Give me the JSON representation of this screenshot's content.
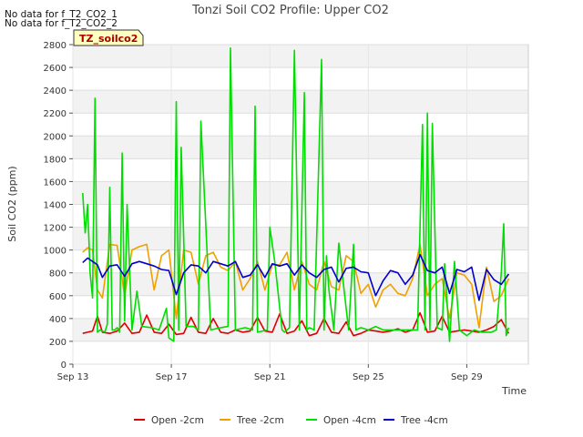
{
  "notes": [
    "No data for f_T2_CO2_1",
    "No data for f_T2_CO2_2"
  ],
  "badge": "TZ_soilco2",
  "chart_data": {
    "type": "line",
    "title": "Tonzi Soil CO2 Profile: Upper CO2",
    "xlabel": "Time",
    "ylabel": "Soil CO2 (ppm)",
    "ylim": [
      0,
      2800
    ],
    "yticks": [
      0,
      200,
      400,
      600,
      800,
      1000,
      1200,
      1400,
      1600,
      1800,
      2000,
      2200,
      2400,
      2600,
      2800
    ],
    "xlim": [
      13,
      31.5
    ],
    "xticks": [
      {
        "x": 13,
        "label": "Sep 13"
      },
      {
        "x": 17,
        "label": "Sep 17"
      },
      {
        "x": 21,
        "label": "Sep 21"
      },
      {
        "x": 25,
        "label": "Sep 25"
      },
      {
        "x": 29,
        "label": "Sep 29"
      }
    ],
    "grid": true,
    "legend_position": "bottom",
    "series": [
      {
        "name": "Open -2cm",
        "color": "#dd0000",
        "x": [
          13.4,
          13.6,
          13.8,
          14.0,
          14.2,
          14.5,
          14.8,
          15.1,
          15.4,
          15.7,
          16.0,
          16.3,
          16.6,
          16.9,
          17.2,
          17.5,
          17.8,
          18.1,
          18.4,
          18.7,
          19.0,
          19.3,
          19.6,
          19.9,
          20.2,
          20.5,
          20.8,
          21.1,
          21.4,
          21.7,
          22.0,
          22.3,
          22.6,
          22.9,
          23.2,
          23.5,
          23.8,
          24.1,
          24.4,
          24.7,
          25.0,
          25.3,
          25.6,
          25.9,
          26.2,
          26.5,
          26.8,
          27.1,
          27.4,
          27.7,
          28.0,
          28.3,
          28.6,
          28.9,
          29.2,
          29.5,
          29.8,
          30.1,
          30.4,
          30.7
        ],
        "values": [
          270,
          280,
          290,
          420,
          280,
          270,
          290,
          360,
          270,
          280,
          430,
          280,
          270,
          350,
          260,
          270,
          410,
          280,
          270,
          400,
          280,
          270,
          300,
          280,
          290,
          410,
          290,
          280,
          440,
          270,
          290,
          380,
          250,
          270,
          400,
          280,
          270,
          370,
          250,
          270,
          300,
          290,
          280,
          290,
          310,
          280,
          300,
          450,
          280,
          290,
          420,
          280,
          290,
          300,
          290,
          280,
          300,
          330,
          390,
          270
        ]
      },
      {
        "name": "Tree -2cm",
        "color": "#f0a000",
        "x": [
          13.4,
          13.6,
          13.8,
          14.0,
          14.2,
          14.5,
          14.8,
          15.1,
          15.4,
          15.7,
          16.0,
          16.3,
          16.6,
          16.9,
          17.2,
          17.5,
          17.8,
          18.1,
          18.4,
          18.7,
          19.0,
          19.3,
          19.6,
          19.9,
          20.2,
          20.5,
          20.8,
          21.1,
          21.4,
          21.7,
          22.0,
          22.3,
          22.6,
          22.9,
          23.2,
          23.5,
          23.8,
          24.1,
          24.4,
          24.7,
          25.0,
          25.3,
          25.6,
          25.9,
          26.2,
          26.5,
          26.8,
          27.1,
          27.4,
          27.7,
          28.0,
          28.3,
          28.6,
          28.9,
          29.2,
          29.5,
          29.8,
          30.1,
          30.4,
          30.7
        ],
        "values": [
          980,
          1020,
          1000,
          650,
          580,
          1050,
          1040,
          600,
          1000,
          1030,
          1050,
          650,
          950,
          1000,
          400,
          1000,
          980,
          700,
          950,
          980,
          850,
          820,
          900,
          650,
          750,
          900,
          650,
          870,
          870,
          980,
          650,
          900,
          700,
          650,
          900,
          680,
          650,
          950,
          900,
          620,
          700,
          500,
          650,
          700,
          620,
          600,
          750,
          1050,
          600,
          700,
          750,
          400,
          800,
          780,
          700,
          320,
          850,
          550,
          600,
          750
        ]
      },
      {
        "name": "Open -4cm",
        "color": "#00dd00",
        "x": [
          13.4,
          13.5,
          13.6,
          13.7,
          13.8,
          13.9,
          14.0,
          14.1,
          14.3,
          14.4,
          14.5,
          14.6,
          14.7,
          14.8,
          14.9,
          15.0,
          15.1,
          15.2,
          15.4,
          15.6,
          15.8,
          16.2,
          16.5,
          16.8,
          16.9,
          17.1,
          17.2,
          17.3,
          17.4,
          17.6,
          17.9,
          18.1,
          18.2,
          18.6,
          19.0,
          19.3,
          19.4,
          19.6,
          20.0,
          20.3,
          20.4,
          20.5,
          20.9,
          21.0,
          21.2,
          21.5,
          21.6,
          21.8,
          22.0,
          22.2,
          22.4,
          22.5,
          22.6,
          22.8,
          23.1,
          23.2,
          23.3,
          23.4,
          23.6,
          23.8,
          24.2,
          24.4,
          24.5,
          24.7,
          25.0,
          25.3,
          25.6,
          26.0,
          26.5,
          27.0,
          27.2,
          27.3,
          27.4,
          27.5,
          27.6,
          27.8,
          28.0,
          28.1,
          28.3,
          28.5,
          28.7,
          29.0,
          29.3,
          29.6,
          30.0,
          30.2,
          30.4,
          30.5,
          30.6,
          30.7
        ],
        "values": [
          1500,
          1150,
          1400,
          800,
          580,
          2330,
          280,
          300,
          280,
          350,
          1550,
          300,
          300,
          320,
          280,
          1850,
          380,
          1400,
          300,
          640,
          330,
          320,
          300,
          490,
          230,
          200,
          2300,
          300,
          1900,
          330,
          330,
          300,
          2130,
          300,
          320,
          330,
          2770,
          300,
          320,
          300,
          2260,
          280,
          300,
          1200,
          900,
          300,
          280,
          320,
          2750,
          300,
          2380,
          300,
          320,
          300,
          2670,
          300,
          950,
          650,
          300,
          1060,
          300,
          1050,
          300,
          320,
          300,
          330,
          300,
          300,
          300,
          300,
          2100,
          300,
          2200,
          300,
          2110,
          320,
          300,
          880,
          200,
          900,
          300,
          250,
          300,
          280,
          280,
          300,
          800,
          1230,
          250,
          320
        ]
      },
      {
        "name": "Tree -4cm",
        "color": "#0000cc",
        "x": [
          13.4,
          13.6,
          13.8,
          14.0,
          14.2,
          14.5,
          14.8,
          15.1,
          15.4,
          15.7,
          16.0,
          16.3,
          16.6,
          16.9,
          17.2,
          17.5,
          17.8,
          18.1,
          18.4,
          18.7,
          19.0,
          19.3,
          19.6,
          19.9,
          20.2,
          20.5,
          20.8,
          21.1,
          21.4,
          21.7,
          22.0,
          22.3,
          22.6,
          22.9,
          23.2,
          23.5,
          23.8,
          24.1,
          24.4,
          24.7,
          25.0,
          25.3,
          25.6,
          25.9,
          26.2,
          26.5,
          26.8,
          27.1,
          27.4,
          27.7,
          28.0,
          28.3,
          28.6,
          28.9,
          29.2,
          29.5,
          29.8,
          30.1,
          30.4,
          30.7
        ],
        "values": [
          890,
          930,
          900,
          870,
          760,
          860,
          870,
          770,
          880,
          900,
          880,
          860,
          830,
          820,
          610,
          800,
          870,
          860,
          800,
          900,
          880,
          860,
          900,
          760,
          780,
          870,
          760,
          880,
          860,
          880,
          780,
          870,
          800,
          760,
          830,
          850,
          720,
          840,
          850,
          810,
          800,
          600,
          730,
          820,
          800,
          700,
          780,
          960,
          820,
          800,
          850,
          620,
          830,
          810,
          850,
          560,
          830,
          740,
          700,
          790
        ]
      }
    ]
  }
}
